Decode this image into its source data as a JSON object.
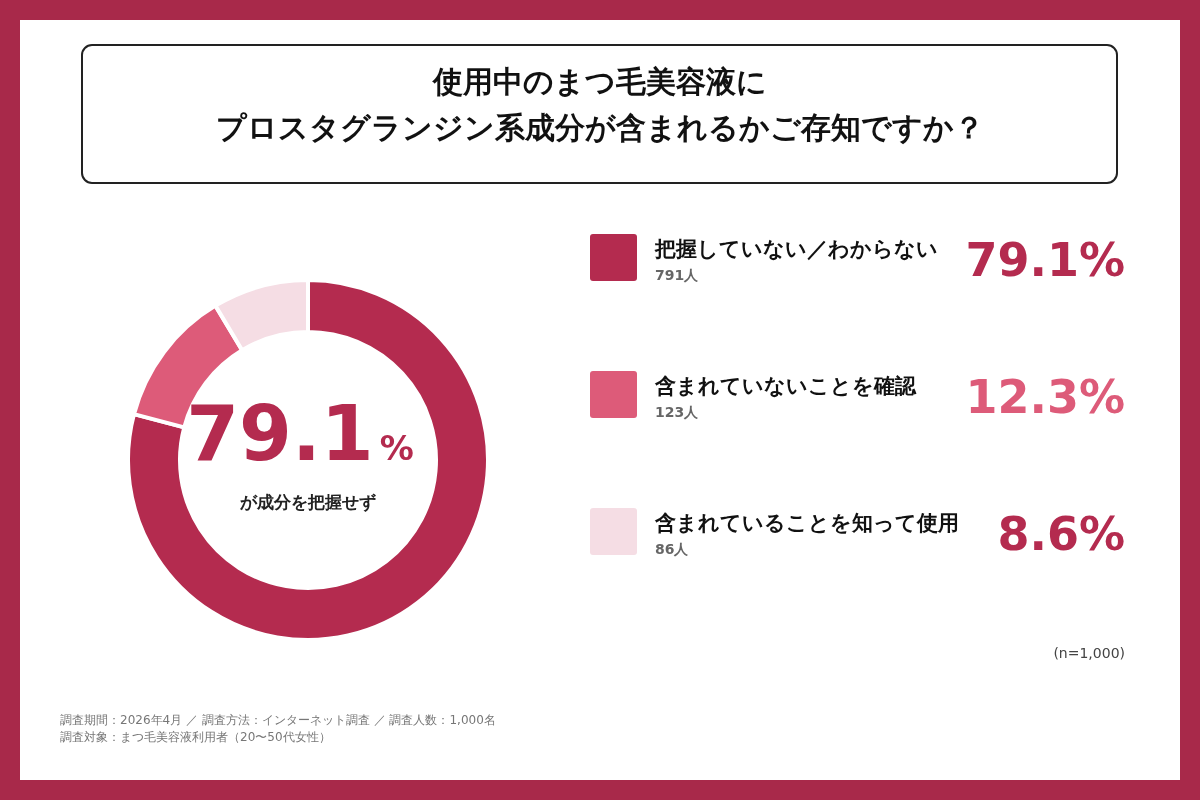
{
  "chart_data": {
    "type": "donut",
    "title": "使用中のまつ毛美容液に",
    "subtitle": "プロスタグランジン系成分が含まれるかご存知ですか？",
    "categories": [
      "把握していない／わからない",
      "含まれていないことを確認",
      "含まれていることを知って使用"
    ],
    "values": [
      79.1,
      12.3,
      8.6
    ],
    "colors": [
      "#b42b4f",
      "#dd5b79",
      "#f5dde4"
    ],
    "value_labels": [
      "79.1%",
      "12.3%",
      "8.6%"
    ],
    "legend": "right",
    "annotations": [
      "79.1%",
      "が成分を把握せず",
      "791人",
      "123人",
      "86人",
      "(n=1,000)",
      "調査期間：2026年4月 ／ 調査方法：インターネット調査 ／ 調査人数：1,000名",
      "調査対象：まつ毛美容液利用者（20〜50代女性）"
    ]
  }
}
